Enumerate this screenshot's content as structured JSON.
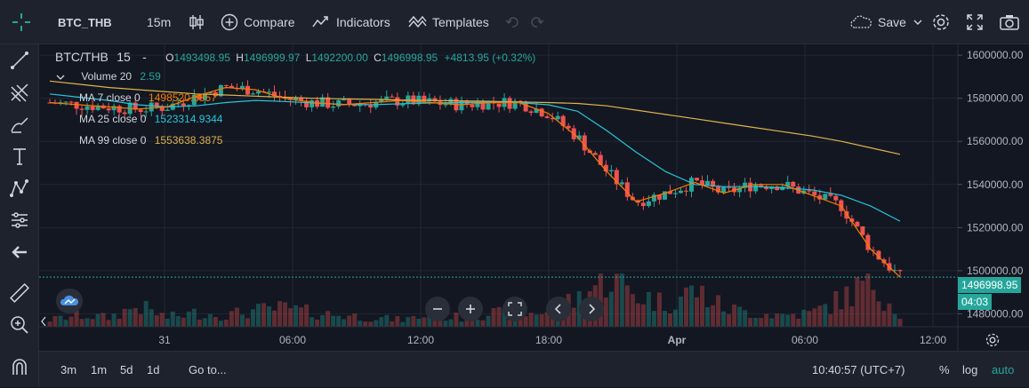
{
  "header": {
    "symbol": "BTC_THB",
    "interval": "15m",
    "compare_label": "Compare",
    "indicators_label": "Indicators",
    "templates_label": "Templates",
    "save_label": "Save"
  },
  "legend": {
    "title": "BTC/THB",
    "interval": "15",
    "dash": "-",
    "open_prefix": "O",
    "open": "1493498.95",
    "high_prefix": "H",
    "high": "1496999.97",
    "low_prefix": "L",
    "low": "1492200.00",
    "close_prefix": "C",
    "close": "1496998.95",
    "change": "+4813.95 (+0.32%)",
    "volume_label": "Volume 20",
    "volume_value": "2.59",
    "ma7_label": "MA 7 close 0",
    "ma7_value": "1498520.3857",
    "ma25_label": "MA 25 close 0",
    "ma25_value": "1523314.9344",
    "ma99_label": "MA 99 close 0",
    "ma99_value": "1553638.3875"
  },
  "price_axis": {
    "ticks": [
      "1600000.00",
      "1580000.00",
      "1560000.00",
      "1540000.00",
      "1520000.00",
      "1500000.00",
      "1480000.00"
    ],
    "last_price": "1496998.95",
    "countdown": "04:03"
  },
  "time_axis": {
    "ticks": [
      "31",
      "06:00",
      "12:00",
      "18:00",
      "Apr",
      "06:00",
      "12:00"
    ]
  },
  "bottom": {
    "ranges": [
      "3m",
      "1m",
      "5d",
      "1d"
    ],
    "goto_label": "Go to...",
    "clock": "10:40:57 (UTC+7)",
    "percent_label": "%",
    "log_label": "log",
    "auto_label": "auto"
  },
  "colors": {
    "up": "#26a69a",
    "down": "#ef5350",
    "ma7": "#f57c00",
    "ma25": "#26c6da",
    "ma99": "#e0b34b",
    "accent": "#2962ff"
  },
  "chart_data": {
    "type": "candlestick",
    "x_ticks": [
      "31",
      "06:00",
      "12:00",
      "18:00",
      "Apr",
      "06:00",
      "12:00"
    ],
    "y_ticks": [
      1600000,
      1580000,
      1560000,
      1540000,
      1520000,
      1500000,
      1480000
    ],
    "ylim": [
      1474000,
      1605000
    ],
    "last_price": 1496998.95,
    "ma99": [
      1588000,
      1586500,
      1585000,
      1584000,
      1583000,
      1582000,
      1581500,
      1581000,
      1580500,
      1580000,
      1579700,
      1579500,
      1579200,
      1579000,
      1578800,
      1578600,
      1578300,
      1578000,
      1577600,
      1576500,
      1574500,
      1572500,
      1570500,
      1568500,
      1566500,
      1564500,
      1562500,
      1560000,
      1557000,
      1554000
    ],
    "ma25": [
      1582000,
      1580500,
      1579000,
      1577000,
      1576000,
      1576500,
      1578000,
      1579000,
      1578500,
      1577800,
      1577200,
      1577000,
      1577500,
      1577800,
      1578000,
      1578200,
      1578000,
      1577000,
      1574000,
      1565000,
      1555000,
      1546000,
      1540000,
      1539000,
      1539000,
      1538500,
      1537500,
      1535000,
      1530000,
      1523000
    ],
    "ma7": [
      1578000,
      1577000,
      1576000,
      1575000,
      1576000,
      1581000,
      1585000,
      1584000,
      1580000,
      1578000,
      1577000,
      1578000,
      1579000,
      1578000,
      1577000,
      1578000,
      1578000,
      1573000,
      1562000,
      1546000,
      1532000,
      1536000,
      1541000,
      1536000,
      1540000,
      1540000,
      1535000,
      1530000,
      1510000,
      1497000
    ],
    "volume": [
      3,
      5,
      4,
      9,
      4,
      6,
      5,
      7,
      8,
      6,
      5,
      4,
      3,
      5,
      4,
      6,
      5,
      7,
      12,
      22,
      14,
      10,
      16,
      8,
      6,
      5,
      6,
      12,
      20,
      6
    ]
  }
}
